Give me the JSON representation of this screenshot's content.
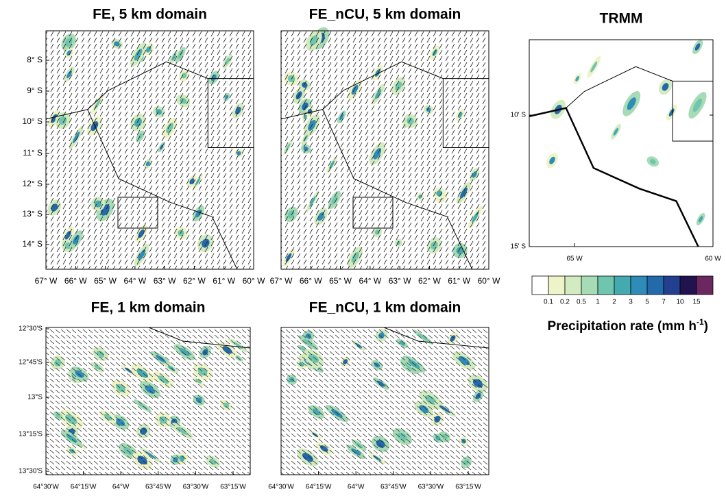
{
  "panels": [
    {
      "title": "FE, 5 km domain",
      "yticks": [
        "8° S",
        "9° S",
        "10° S",
        "11° S",
        "12° S",
        "13° S",
        "14° S"
      ],
      "xticks": [
        "67° W",
        "66° W",
        "65° W",
        "64° W",
        "63° W",
        "62° W",
        "61° W",
        "60° W"
      ]
    },
    {
      "title": "FE_nCU, 5 km domain",
      "xticks": [
        "67° W",
        "66° W",
        "65° W",
        "64° W",
        "63° W",
        "62° W",
        "61° W",
        "60° W"
      ]
    },
    {
      "title": "TRMM",
      "yticks": [
        "10' S",
        "15' S"
      ],
      "xticks": [
        "65  W",
        "60  W"
      ]
    },
    {
      "title": "FE, 1 km domain",
      "yticks": [
        "12°30'S",
        "12°45'S",
        "13°S",
        "13°15'S",
        "13°30'S"
      ],
      "xticks": [
        "64°30'W",
        "64°15'W",
        "64°W",
        "63°45'W",
        "63°30'W",
        "63°15'W"
      ]
    },
    {
      "title": "FE_nCU, 1 km domain",
      "xticks": [
        "64°30'W",
        "64°15'W",
        "64°W",
        "63°45'W",
        "63°30'W",
        "63°15'W"
      ]
    }
  ],
  "colorbar": {
    "levels": [
      0.1,
      0.2,
      0.5,
      1,
      2,
      3,
      5,
      7,
      10,
      15
    ],
    "colors": [
      "#ffffff",
      "#eef3c8",
      "#d3ebc0",
      "#a6dbb5",
      "#6fc5ad",
      "#45aab0",
      "#2f8bb8",
      "#236aab",
      "#233f8f",
      "#20134e",
      "#6b2760"
    ],
    "label": {
      "main": "Precipitation rate (mm h",
      "sup": "-1",
      "end": ")"
    }
  }
}
